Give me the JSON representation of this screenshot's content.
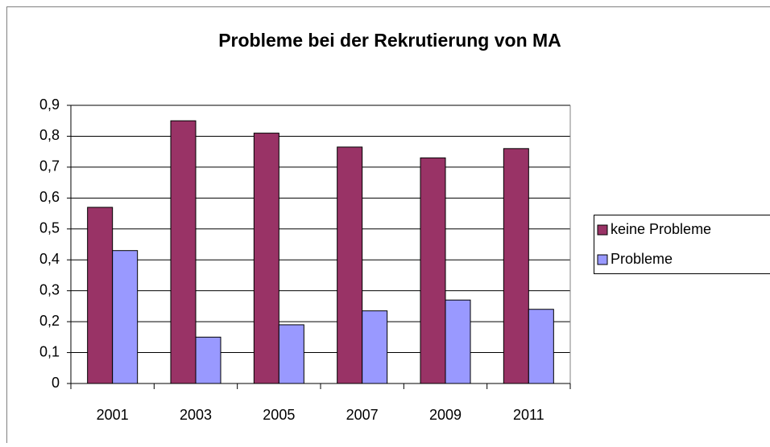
{
  "chart_data": {
    "type": "bar",
    "title": "Probleme bei der Rekrutierung von MA",
    "categories": [
      "2001",
      "2003",
      "2005",
      "2007",
      "2009",
      "2011"
    ],
    "series": [
      {
        "name": "keine Probleme",
        "color": "#993366",
        "values": [
          0.57,
          0.85,
          0.81,
          0.765,
          0.73,
          0.76
        ]
      },
      {
        "name": "Probleme",
        "color": "#9999ff",
        "values": [
          0.43,
          0.15,
          0.19,
          0.235,
          0.27,
          0.24
        ]
      }
    ],
    "ylim": [
      0,
      0.9
    ],
    "yticks": [
      0,
      {
        "value": 0.1,
        "label": "0,1"
      },
      {
        "value": 0.2,
        "label": "0,2"
      },
      {
        "value": 0.3,
        "label": "0,3"
      },
      {
        "value": 0.4,
        "label": "0,4"
      },
      {
        "value": 0.5,
        "label": "0,5"
      },
      {
        "value": 0.6,
        "label": "0,6"
      },
      {
        "value": 0.7,
        "label": "0,7"
      },
      {
        "value": 0.8,
        "label": "0,8"
      },
      {
        "value": 0.9,
        "label": "0,9"
      }
    ],
    "grid": true,
    "legend": "right"
  }
}
